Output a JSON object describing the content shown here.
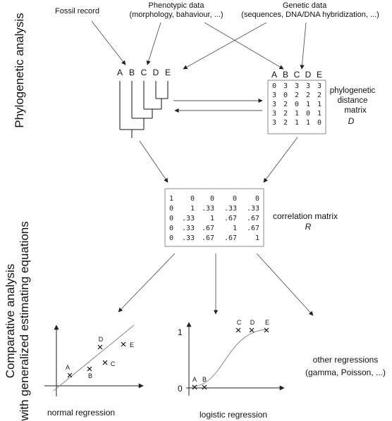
{
  "side_labels": {
    "phylo": "Phylogenetic analysis",
    "comp_line1": "Comparative analysis",
    "comp_line2": "with generalized estimating equations"
  },
  "sources": {
    "fossil": "Fossil record",
    "pheno_line1": "Phenotypic data",
    "pheno_line2": "(morphology, bahaviour, ...)",
    "genetic_line1": "Genetic data",
    "genetic_line2": "(sequences, DNA/DNA hybridization, ...)"
  },
  "taxa": [
    "A",
    "B",
    "C",
    "D",
    "E"
  ],
  "distance_matrix": {
    "rows": [
      [
        "0",
        "3",
        "3",
        "3",
        "3"
      ],
      [
        "3",
        "0",
        "2",
        "2",
        "2"
      ],
      [
        "3",
        "2",
        "0",
        "1",
        "1"
      ],
      [
        "3",
        "2",
        "1",
        "0",
        "1"
      ],
      [
        "3",
        "2",
        "1",
        "1",
        "0"
      ]
    ],
    "label_line1": "phylogenetic",
    "label_line2": "distance",
    "label_line3": "matrix",
    "symbol": "D"
  },
  "correlation_matrix": {
    "rows": [
      [
        "1",
        "0",
        "0",
        "0",
        "0"
      ],
      [
        "0",
        "1",
        ".33",
        ".33",
        ".33"
      ],
      [
        "0",
        ".33",
        "1",
        ".67",
        ".67"
      ],
      [
        "0",
        ".33",
        ".67",
        "1",
        ".67"
      ],
      [
        "0",
        ".33",
        ".67",
        ".67",
        "1"
      ]
    ],
    "label": "correlation matrix",
    "symbol": "R"
  },
  "regressions": {
    "normal": {
      "label": "normal regression",
      "points": [
        {
          "name": "A"
        },
        {
          "name": "B"
        },
        {
          "name": "C"
        },
        {
          "name": "D"
        },
        {
          "name": "E"
        }
      ]
    },
    "logistic": {
      "label": "logistic regression",
      "y_top": "1",
      "y_bottom": "0",
      "points": [
        {
          "name": "A",
          "y": 0
        },
        {
          "name": "B",
          "y": 0
        },
        {
          "name": "C",
          "y": 1
        },
        {
          "name": "D",
          "y": 1
        },
        {
          "name": "E",
          "y": 1
        }
      ]
    },
    "other_line1": "other regressions",
    "other_line2": "(gamma, Poisson, ...)"
  }
}
